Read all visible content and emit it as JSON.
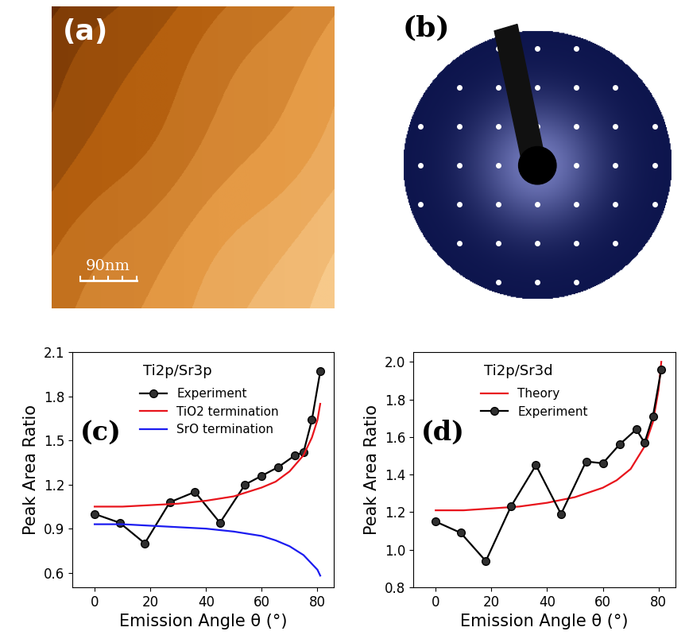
{
  "chart_data": [
    {
      "type": "line",
      "title": "Ti2p/Sr3p",
      "annotations": [
        "(c)"
      ],
      "x_label": "Emission Angle θ (°)",
      "y_label": "Peak Area Ratio",
      "xlim": [
        -8,
        86
      ],
      "xticks": [
        0,
        20,
        40,
        60,
        80
      ],
      "ylim": [
        0.5,
        2.1
      ],
      "yticks": [
        0.6,
        0.9,
        1.2,
        1.5,
        1.8,
        2.1
      ],
      "legend": "upper left",
      "series": [
        {
          "name": "Experiment",
          "color": "#000000",
          "marker": "o",
          "line_style": "solid",
          "x": [
            0,
            9,
            18,
            27,
            36,
            45,
            54,
            60,
            66,
            72,
            75,
            78,
            81
          ],
          "values": [
            1.0,
            0.94,
            0.8,
            1.08,
            1.15,
            0.94,
            1.2,
            1.26,
            1.32,
            1.4,
            1.42,
            1.64,
            1.97
          ]
        },
        {
          "name": "TiO2 termination",
          "color": "#e8141c",
          "marker": "none",
          "line_style": "solid",
          "x": [
            0,
            10,
            20,
            30,
            40,
            50,
            60,
            65,
            70,
            75,
            78,
            80,
            81
          ],
          "values": [
            1.05,
            1.05,
            1.06,
            1.07,
            1.09,
            1.12,
            1.18,
            1.22,
            1.29,
            1.4,
            1.52,
            1.64,
            1.75
          ]
        },
        {
          "name": "SrO termination",
          "color": "#1c1cf0",
          "marker": "none",
          "line_style": "solid",
          "x": [
            0,
            10,
            20,
            30,
            40,
            50,
            60,
            65,
            70,
            75,
            78,
            80,
            81
          ],
          "values": [
            0.93,
            0.93,
            0.92,
            0.91,
            0.9,
            0.88,
            0.85,
            0.82,
            0.78,
            0.72,
            0.66,
            0.62,
            0.58
          ]
        }
      ]
    },
    {
      "type": "line",
      "title": "Ti2p/Sr3d",
      "annotations": [
        "(d)"
      ],
      "x_label": "Emission Angle θ (°)",
      "y_label": "Peak Area Ratio",
      "xlim": [
        -8,
        86
      ],
      "xticks": [
        0,
        20,
        40,
        60,
        80
      ],
      "ylim": [
        0.8,
        2.05
      ],
      "yticks": [
        0.8,
        {
          "value": 1.0,
          "label": "1.0"
        },
        1.2,
        1.4,
        1.6,
        1.8,
        {
          "value": 2.0,
          "label": "2.0"
        }
      ],
      "legend": "upper left",
      "series": [
        {
          "name": "Theory",
          "color": "#e8141c",
          "marker": "none",
          "line_style": "solid",
          "x": [
            0,
            10,
            20,
            30,
            40,
            50,
            60,
            65,
            70,
            75,
            78,
            80,
            81
          ],
          "values": [
            1.21,
            1.21,
            1.22,
            1.23,
            1.25,
            1.28,
            1.33,
            1.37,
            1.43,
            1.55,
            1.68,
            1.85,
            2.0
          ]
        },
        {
          "name": "Experiment",
          "color": "#000000",
          "marker": "o",
          "line_style": "solid",
          "x": [
            0,
            9,
            18,
            27,
            36,
            45,
            54,
            60,
            66,
            72,
            75,
            78,
            81
          ],
          "values": [
            1.15,
            1.09,
            0.94,
            1.23,
            1.45,
            1.19,
            1.47,
            1.46,
            1.56,
            1.64,
            1.57,
            1.71,
            1.96
          ]
        }
      ]
    }
  ],
  "images": [
    {
      "label": "(a)",
      "scale_bar": "90nm"
    },
    {
      "label": "(b)"
    }
  ]
}
